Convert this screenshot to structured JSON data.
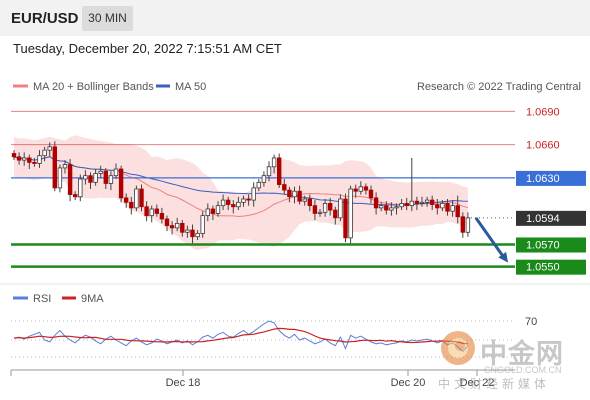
{
  "header": {
    "pair": "EUR/USD",
    "timeframe": "30 MIN",
    "timestamp": "Tuesday, December 20, 2022 7:15:51 AM CET"
  },
  "legend": {
    "ma20": "MA 20 + Bollinger Bands",
    "ma50": "MA 50",
    "credit": "Research © 2022 Trading Central"
  },
  "rsi_legend": {
    "rsi": "RSI",
    "ma9": "9MA",
    "level_label": "70"
  },
  "colors": {
    "resistance": "#cc2222",
    "support": "#1a8a1a",
    "pivot": "#3a6fd8",
    "last_price": "#333333",
    "band_fill": "#fbd9d9",
    "ma20": "#f08080",
    "ma50": "#3a5fbf",
    "rsi": "#5b7fd9",
    "rsi_ma": "#cc2222",
    "arrow": "#2a5a9a"
  },
  "chart_data": {
    "type": "candlestick",
    "ylim": [
      1.0538,
      1.0702
    ],
    "levels": [
      {
        "label": "1.0690",
        "value": 1.069,
        "kind": "resistance"
      },
      {
        "label": "1.0660",
        "value": 1.066,
        "kind": "resistance"
      },
      {
        "label": "1.0630",
        "value": 1.063,
        "kind": "pivot"
      },
      {
        "label": "1.0594",
        "value": 1.0594,
        "kind": "last"
      },
      {
        "label": "1.0570",
        "value": 1.057,
        "kind": "support"
      },
      {
        "label": "1.0550",
        "value": 1.055,
        "kind": "support"
      }
    ],
    "x_ticks": [
      "Dec 18",
      "Dec 20",
      "Dec 22"
    ],
    "forecast": {
      "from": 1.0594,
      "to": 1.055
    },
    "rsi_level": 70,
    "close": [
      1.0649,
      1.0646,
      1.0648,
      1.0644,
      1.0643,
      1.065,
      1.0655,
      1.0658,
      1.0621,
      1.0639,
      1.0642,
      1.0615,
      1.0613,
      1.0629,
      1.0632,
      1.0626,
      1.0634,
      1.0636,
      1.0625,
      1.0632,
      1.0638,
      1.0612,
      1.0608,
      1.0603,
      1.062,
      1.0604,
      1.0596,
      1.0602,
      1.0598,
      1.0593,
      1.0587,
      1.0585,
      1.0589,
      1.0581,
      1.0583,
      1.0577,
      1.058,
      1.0596,
      1.0602,
      1.0598,
      1.0605,
      1.061,
      1.0606,
      1.0604,
      1.0608,
      1.0611,
      1.061,
      1.0621,
      1.0626,
      1.0632,
      1.064,
      1.0648,
      1.0624,
      1.0619,
      1.0613,
      1.0618,
      1.0609,
      1.0611,
      1.0605,
      1.0598,
      1.0599,
      1.0607,
      1.0601,
      1.0594,
      1.0611,
      1.0576,
      1.062,
      1.0618,
      1.0622,
      1.0619,
      1.0612,
      1.0603,
      1.0605,
      1.0601,
      1.0603,
      1.0604,
      1.0607,
      1.0605,
      1.0609,
      1.0607,
      1.0608,
      1.061,
      1.0606,
      1.0603,
      1.0607,
      1.06,
      1.0605,
      1.0595,
      1.0581,
      1.0594
    ],
    "rsi_values": [
      52,
      53,
      51,
      54,
      56,
      58,
      50,
      48,
      55,
      60,
      54,
      50,
      47,
      52,
      55,
      53,
      49,
      46,
      51,
      54,
      50,
      47,
      44,
      49,
      52,
      48,
      45,
      47,
      51,
      49,
      46,
      48,
      50,
      47,
      49,
      45,
      48,
      53,
      55,
      52,
      56,
      58,
      54,
      53,
      57,
      60,
      56,
      59,
      63,
      67,
      70,
      68,
      60,
      55,
      52,
      56,
      50,
      52,
      49,
      46,
      48,
      51,
      47,
      44,
      53,
      41,
      55,
      52,
      54,
      51,
      48,
      46,
      47,
      45,
      46,
      47,
      49,
      48,
      50,
      49,
      50,
      51,
      49,
      47,
      49,
      45,
      47,
      43,
      38,
      44
    ]
  }
}
